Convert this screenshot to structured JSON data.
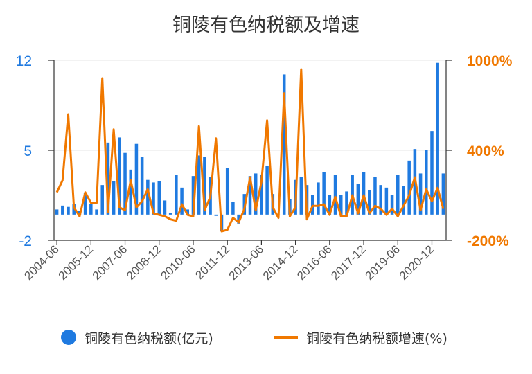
{
  "chart_data": {
    "type": "bar+line",
    "title": "铜陵有色纳税额及增速",
    "colors": {
      "bar": "#1f7ae0",
      "line": "#f07800",
      "left_axis": "#1f7ae0",
      "right_axis": "#f07800"
    },
    "left_axis": {
      "min": -2,
      "max": 12,
      "ticks": [
        "12",
        "5",
        "-2"
      ],
      "tick_values": [
        12,
        5,
        -2
      ]
    },
    "right_axis": {
      "min": -200,
      "max": 1000,
      "ticks": [
        "1000%",
        "400%",
        "-200%"
      ],
      "tick_values": [
        1000,
        400,
        -200
      ]
    },
    "x_tick_labels": [
      "2004-06",
      "2005-12",
      "2007-06",
      "2008-12",
      "2010-06",
      "2011-12",
      "2013-06",
      "2014-12",
      "2016-06",
      "2017-12",
      "2019-06",
      "2020-12"
    ],
    "x_tick_every": 6,
    "grid": "horizontal",
    "series": [
      {
        "name": "铜陵有色纳税额(亿元)",
        "type": "bar",
        "axis": "left",
        "values": [
          0.4,
          0.7,
          0.6,
          0.8,
          0.3,
          1.7,
          0.8,
          0.4,
          2.3,
          5.6,
          2.6,
          6.0,
          4.8,
          3.5,
          5.5,
          4.5,
          2.7,
          2.5,
          2.6,
          1.1,
          0.1,
          3.1,
          2.1,
          0.4,
          3.0,
          4.6,
          4.5,
          2.9,
          -0.1,
          -1.3,
          3.6,
          1.0,
          -0.7,
          1.6,
          3.0,
          3.2,
          3.1,
          3.8,
          1.6,
          0.0,
          10.9,
          1.2,
          2.7,
          2.9,
          2.3,
          1.5,
          2.5,
          3.3,
          1.5,
          3.1,
          1.5,
          1.8,
          3.1,
          2.4,
          3.3,
          1.9,
          2.9,
          2.3,
          2.1,
          1.5,
          3.1,
          2.2,
          4.2,
          5.1,
          3.2,
          5.0,
          6.5,
          11.8,
          3.2
        ]
      },
      {
        "name": "铜陵有色纳税额增速(%)",
        "type": "line",
        "axis": "right",
        "values": [
          120,
          200,
          640,
          20,
          -40,
          120,
          50,
          50,
          880,
          -10,
          540,
          20,
          0,
          200,
          20,
          60,
          140,
          -20,
          -30,
          -40,
          -60,
          -70,
          40,
          -30,
          -40,
          560,
          0,
          90,
          480,
          -140,
          -130,
          -50,
          -80,
          10,
          220,
          0,
          190,
          600,
          20,
          -50,
          780,
          -40,
          20,
          940,
          -60,
          30,
          30,
          40,
          -30,
          90,
          -40,
          -40,
          100,
          -20,
          100,
          -20,
          30,
          10,
          -30,
          10,
          -40,
          30,
          100,
          220,
          0,
          140,
          60,
          150,
          10
        ]
      }
    ],
    "legend": {
      "placement": "bottom"
    }
  }
}
